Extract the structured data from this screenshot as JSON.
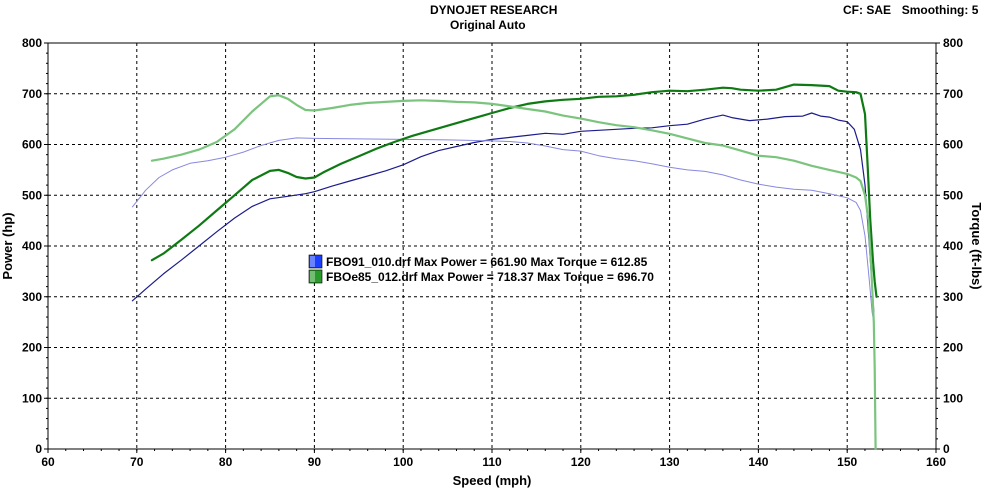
{
  "header": {
    "title": "DYNOJET RESEARCH",
    "subtitle": "Original Auto",
    "cf_label": "CF:",
    "cf_value": "SAE",
    "smoothing_label": "Smoothing:",
    "smoothing_value": "5"
  },
  "chart_data": {
    "type": "line",
    "xlabel": "Speed (mph)",
    "ylabel": "Power (hp)",
    "y2label": "Torque (ft-lbs)",
    "xlim": [
      60,
      160
    ],
    "ylim": [
      0,
      800
    ],
    "y2lim": [
      0,
      800
    ],
    "grid": true,
    "x_ticks": [
      "60",
      "70",
      "80",
      "90",
      "100",
      "110",
      "120",
      "130",
      "140",
      "150",
      "160"
    ],
    "y_ticks": [
      "0",
      "100",
      "200",
      "300",
      "400",
      "500",
      "600",
      "700",
      "800"
    ],
    "legend": [
      {
        "label": "FBO91_010.drf Max Power = 661.90 Max Torque = 612.85",
        "color": "#1a3fff"
      },
      {
        "label": "FBOe85_012.drf Max Power = 718.37 Max Torque = 696.70",
        "color": "#2a9a2a"
      }
    ],
    "series": [
      {
        "name": "FBO91_010.drf Power",
        "color": "#1c1c8c",
        "width": 1.2,
        "points": [
          [
            69.5,
            292
          ],
          [
            71,
            315
          ],
          [
            73,
            345
          ],
          [
            75,
            372
          ],
          [
            77,
            400
          ],
          [
            79,
            428
          ],
          [
            81,
            455
          ],
          [
            83,
            478
          ],
          [
            85,
            493
          ],
          [
            87,
            498
          ],
          [
            89,
            503
          ],
          [
            90,
            507
          ],
          [
            92,
            518
          ],
          [
            94,
            528
          ],
          [
            96,
            538
          ],
          [
            98,
            548
          ],
          [
            100,
            560
          ],
          [
            102,
            576
          ],
          [
            104,
            588
          ],
          [
            106,
            596
          ],
          [
            108,
            604
          ],
          [
            110,
            610
          ],
          [
            112,
            614
          ],
          [
            114,
            618
          ],
          [
            116,
            622
          ],
          [
            118,
            620
          ],
          [
            120,
            626
          ],
          [
            122,
            628
          ],
          [
            124,
            630
          ],
          [
            126,
            632
          ],
          [
            128,
            633
          ],
          [
            130,
            637
          ],
          [
            132,
            640
          ],
          [
            134,
            650
          ],
          [
            136,
            658
          ],
          [
            137,
            653
          ],
          [
            139,
            647
          ],
          [
            141,
            650
          ],
          [
            143,
            655
          ],
          [
            145,
            656
          ],
          [
            146,
            662
          ],
          [
            147,
            656
          ],
          [
            148,
            654
          ],
          [
            149,
            648
          ],
          [
            150,
            645
          ],
          [
            150.8,
            630
          ],
          [
            151.5,
            590
          ],
          [
            152,
            520
          ],
          [
            152.5,
            400
          ],
          [
            152.8,
            320
          ],
          [
            153,
            270
          ]
        ]
      },
      {
        "name": "FBO91_010.drf Torque",
        "color": "#8888e0",
        "width": 1.0,
        "points": [
          [
            69.5,
            477
          ],
          [
            71,
            510
          ],
          [
            72.5,
            535
          ],
          [
            74,
            550
          ],
          [
            76,
            563
          ],
          [
            78,
            568
          ],
          [
            80,
            575
          ],
          [
            82,
            585
          ],
          [
            84,
            598
          ],
          [
            86,
            608
          ],
          [
            88,
            613
          ],
          [
            90,
            612
          ],
          [
            95,
            611
          ],
          [
            100,
            610
          ],
          [
            105,
            609
          ],
          [
            110,
            607
          ],
          [
            112,
            606
          ],
          [
            114,
            603
          ],
          [
            116,
            597
          ],
          [
            118,
            590
          ],
          [
            120,
            587
          ],
          [
            122,
            578
          ],
          [
            124,
            572
          ],
          [
            126,
            568
          ],
          [
            128,
            562
          ],
          [
            130,
            555
          ],
          [
            132,
            550
          ],
          [
            134,
            547
          ],
          [
            136,
            540
          ],
          [
            138,
            530
          ],
          [
            140,
            522
          ],
          [
            142,
            516
          ],
          [
            144,
            512
          ],
          [
            146,
            510
          ],
          [
            148,
            503
          ],
          [
            150,
            495
          ],
          [
            151,
            486
          ],
          [
            151.5,
            470
          ],
          [
            152,
            420
          ],
          [
            152.5,
            330
          ],
          [
            152.8,
            270
          ],
          [
            153,
            250
          ]
        ]
      },
      {
        "name": "FBOe85_012.drf Power",
        "color": "#0f7a14",
        "width": 2.2,
        "points": [
          [
            71.7,
            372
          ],
          [
            73,
            385
          ],
          [
            75,
            412
          ],
          [
            77,
            440
          ],
          [
            79,
            470
          ],
          [
            81,
            500
          ],
          [
            83,
            530
          ],
          [
            85,
            548
          ],
          [
            86,
            550
          ],
          [
            87,
            544
          ],
          [
            88,
            536
          ],
          [
            89,
            533
          ],
          [
            90,
            535
          ],
          [
            91,
            545
          ],
          [
            93,
            562
          ],
          [
            95,
            577
          ],
          [
            97,
            592
          ],
          [
            99,
            605
          ],
          [
            101,
            617
          ],
          [
            103,
            627
          ],
          [
            105,
            637
          ],
          [
            107,
            647
          ],
          [
            109,
            657
          ],
          [
            110,
            662
          ],
          [
            112,
            672
          ],
          [
            114,
            680
          ],
          [
            116,
            685
          ],
          [
            118,
            688
          ],
          [
            120,
            690
          ],
          [
            122,
            694
          ],
          [
            124,
            695
          ],
          [
            126,
            698
          ],
          [
            128,
            703
          ],
          [
            130,
            706
          ],
          [
            132,
            705
          ],
          [
            134,
            708
          ],
          [
            136,
            712
          ],
          [
            137,
            711
          ],
          [
            138,
            708
          ],
          [
            140,
            706
          ],
          [
            142,
            708
          ],
          [
            144,
            718
          ],
          [
            146,
            717
          ],
          [
            148,
            715
          ],
          [
            149,
            706
          ],
          [
            150,
            704
          ],
          [
            151,
            703
          ],
          [
            151.5,
            700
          ],
          [
            152,
            660
          ],
          [
            152.3,
            560
          ],
          [
            152.6,
            450
          ],
          [
            152.9,
            370
          ],
          [
            153.1,
            330
          ],
          [
            153.3,
            300
          ]
        ]
      },
      {
        "name": "FBOe85_012.drf Torque",
        "color": "#7bc47e",
        "width": 2.2,
        "points": [
          [
            71.7,
            568
          ],
          [
            73,
            572
          ],
          [
            75,
            580
          ],
          [
            77,
            590
          ],
          [
            79,
            605
          ],
          [
            81,
            630
          ],
          [
            83,
            665
          ],
          [
            85,
            695
          ],
          [
            86,
            697
          ],
          [
            87,
            690
          ],
          [
            88,
            678
          ],
          [
            89,
            668
          ],
          [
            90,
            667
          ],
          [
            92,
            672
          ],
          [
            94,
            678
          ],
          [
            96,
            682
          ],
          [
            98,
            684
          ],
          [
            100,
            686
          ],
          [
            102,
            687
          ],
          [
            104,
            686
          ],
          [
            106,
            684
          ],
          [
            108,
            683
          ],
          [
            110,
            680
          ],
          [
            112,
            675
          ],
          [
            114,
            670
          ],
          [
            116,
            665
          ],
          [
            118,
            657
          ],
          [
            120,
            651
          ],
          [
            122,
            644
          ],
          [
            124,
            638
          ],
          [
            126,
            634
          ],
          [
            128,
            628
          ],
          [
            130,
            621
          ],
          [
            132,
            612
          ],
          [
            134,
            603
          ],
          [
            136,
            598
          ],
          [
            138,
            588
          ],
          [
            140,
            578
          ],
          [
            142,
            575
          ],
          [
            144,
            568
          ],
          [
            146,
            558
          ],
          [
            148,
            550
          ],
          [
            150,
            542
          ],
          [
            151,
            535
          ],
          [
            151.5,
            528
          ],
          [
            152,
            500
          ],
          [
            152.4,
            450
          ],
          [
            152.7,
            360
          ],
          [
            153,
            250
          ],
          [
            153.1,
            160
          ],
          [
            153.2,
            0
          ]
        ]
      }
    ]
  }
}
